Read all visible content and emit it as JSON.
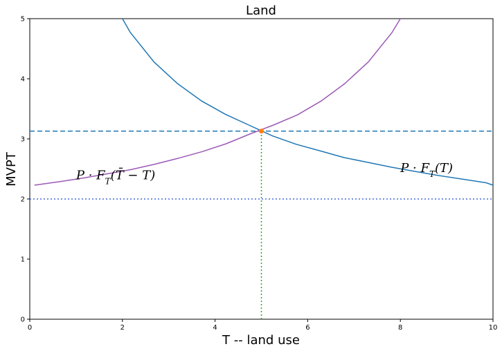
{
  "chart_data": {
    "type": "line",
    "title": "Land",
    "xlabel": "T -- land use",
    "ylabel": "MVPT",
    "xlim": [
      0,
      10
    ],
    "ylim": [
      0,
      5
    ],
    "xticks": [
      "0",
      "2",
      "4",
      "6",
      "8",
      "10"
    ],
    "yticks": [
      "0",
      "1",
      "2",
      "3",
      "4",
      "5"
    ],
    "grid": false,
    "series": [
      {
        "color": "#1f77b4",
        "style": "solid",
        "x": [
          2.0,
          2.17,
          2.68,
          3.19,
          3.71,
          4.22,
          4.73,
          5.24,
          5.75,
          6.27,
          6.78,
          7.29,
          7.8,
          8.31,
          8.83,
          9.34,
          9.85,
          10.0
        ],
        "y": [
          5.0,
          4.77,
          4.28,
          3.92,
          3.63,
          3.41,
          3.23,
          3.05,
          2.91,
          2.8,
          2.69,
          2.61,
          2.53,
          2.46,
          2.39,
          2.33,
          2.27,
          2.23
        ]
      },
      {
        "color": "#9b59b6",
        "style": "solid",
        "x": [
          0.1,
          0.66,
          1.17,
          1.68,
          2.19,
          2.71,
          3.22,
          3.73,
          4.24,
          4.75,
          5.26,
          5.78,
          6.29,
          6.8,
          7.31,
          7.82,
          8.0
        ],
        "y": [
          2.23,
          2.29,
          2.35,
          2.42,
          2.49,
          2.58,
          2.68,
          2.79,
          2.92,
          3.08,
          3.23,
          3.4,
          3.63,
          3.92,
          4.28,
          4.77,
          5.0
        ]
      }
    ],
    "hlines": [
      {
        "y": 3.13,
        "color": "#1f77b4",
        "style": "dashed"
      },
      {
        "y": 2.0,
        "color": "#4169e1",
        "style": "dotted"
      }
    ],
    "vlines": [
      {
        "x": 5.0,
        "color": "#2ca02c",
        "style": "dotted",
        "ymin": 0,
        "ymax": 3.13
      }
    ],
    "points": [
      {
        "x": 5.0,
        "y": 3.13,
        "color": "#ff7f0e"
      }
    ],
    "annotations": [
      {
        "text": "P · F_T(T̄ − T)",
        "x": 1.0,
        "y": 2.33
      },
      {
        "text": "P · F_T(T)",
        "x": 8.0,
        "y": 2.45
      }
    ]
  }
}
